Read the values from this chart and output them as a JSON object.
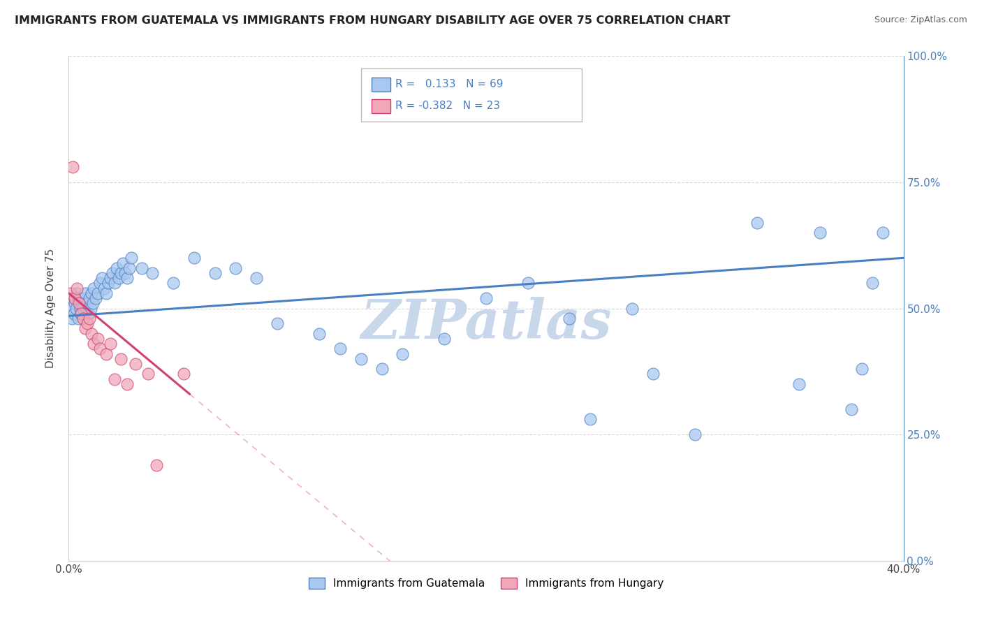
{
  "title": "IMMIGRANTS FROM GUATEMALA VS IMMIGRANTS FROM HUNGARY DISABILITY AGE OVER 75 CORRELATION CHART",
  "source": "Source: ZipAtlas.com",
  "ylabel": "Disability Age Over 75",
  "xmin": 0.0,
  "xmax": 40.0,
  "ymin": 0.0,
  "ymax": 100.0,
  "guatemala_color": "#a8c8f0",
  "hungary_color": "#f0a8b8",
  "guatemala_line_color": "#4a7fc0",
  "hungary_line_color": "#d04070",
  "R_guatemala": 0.133,
  "N_guatemala": 69,
  "R_hungary": -0.382,
  "N_hungary": 23,
  "watermark": "ZIPatlas",
  "watermark_color": "#c8d8ea",
  "grid_color": "#d8d8d8",
  "background_color": "#ffffff",
  "guatemala_x": [
    0.1,
    0.15,
    0.2,
    0.25,
    0.3,
    0.35,
    0.4,
    0.45,
    0.5,
    0.55,
    0.6,
    0.65,
    0.7,
    0.75,
    0.8,
    0.85,
    0.9,
    0.95,
    1.0,
    1.05,
    1.1,
    1.15,
    1.2,
    1.3,
    1.4,
    1.5,
    1.6,
    1.7,
    1.8,
    1.9,
    2.0,
    2.1,
    2.2,
    2.3,
    2.4,
    2.5,
    2.6,
    2.7,
    2.8,
    2.9,
    3.0,
    3.5,
    4.0,
    5.0,
    6.0,
    7.0,
    8.0,
    9.0,
    10.0,
    12.0,
    13.0,
    14.0,
    15.0,
    16.0,
    18.0,
    20.0,
    22.0,
    24.0,
    25.0,
    27.0,
    28.0,
    30.0,
    33.0,
    35.0,
    36.0,
    37.5,
    38.0,
    38.5,
    39.0
  ],
  "guatemala_y": [
    50,
    48,
    52,
    49,
    51,
    50,
    53,
    48,
    52,
    50,
    49,
    51,
    50,
    52,
    53,
    50,
    51,
    49,
    52,
    50,
    53,
    51,
    54,
    52,
    53,
    55,
    56,
    54,
    53,
    55,
    56,
    57,
    55,
    58,
    56,
    57,
    59,
    57,
    56,
    58,
    60,
    58,
    57,
    55,
    60,
    57,
    58,
    56,
    47,
    45,
    42,
    40,
    38,
    41,
    44,
    52,
    55,
    48,
    28,
    50,
    37,
    25,
    67,
    35,
    65,
    30,
    38,
    55,
    65
  ],
  "hungary_x": [
    0.1,
    0.2,
    0.3,
    0.4,
    0.5,
    0.6,
    0.7,
    0.8,
    0.9,
    1.0,
    1.1,
    1.2,
    1.4,
    1.5,
    1.8,
    2.0,
    2.2,
    2.5,
    2.8,
    3.2,
    3.8,
    4.2,
    5.5
  ],
  "hungary_y": [
    53,
    78,
    52,
    54,
    51,
    49,
    48,
    46,
    47,
    48,
    45,
    43,
    44,
    42,
    41,
    43,
    36,
    40,
    35,
    39,
    37,
    19,
    37
  ],
  "guat_line_x0": 0.0,
  "guat_line_x1": 40.0,
  "guat_line_y0": 48.5,
  "guat_line_y1": 60.0,
  "hung_line_x0": 0.0,
  "hung_line_x1": 5.8,
  "hung_line_y0": 53.0,
  "hung_line_y1": 33.0
}
